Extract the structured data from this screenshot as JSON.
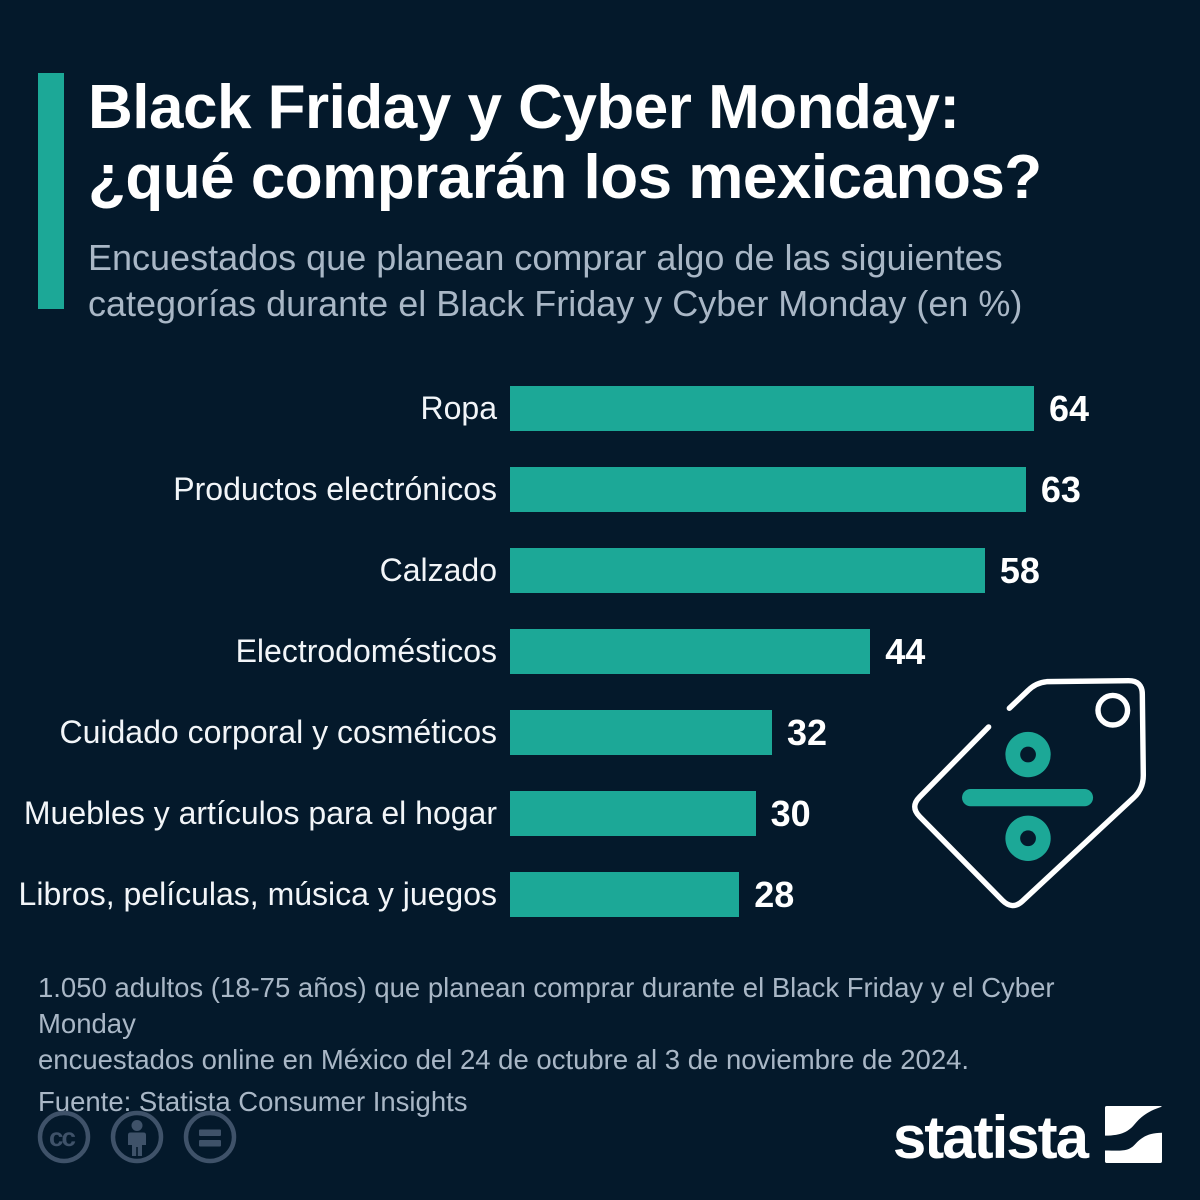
{
  "header": {
    "title_line1": "Black Friday y Cyber Monday:",
    "title_line2": "¿qué comprarán los mexicanos?",
    "subtitle_line1": "Encuestados que planean comprar algo de las siguientes",
    "subtitle_line2": "categorías durante el Black Friday y Cyber Monday (en %)"
  },
  "chart_data": {
    "type": "bar",
    "orientation": "horizontal",
    "title": "Black Friday y Cyber Monday: ¿qué comprarán los mexicanos?",
    "subtitle": "Encuestados que planean comprar algo de las siguientes categorías durante el Black Friday y Cyber Monday (en %)",
    "categories": [
      "Ropa",
      "Productos electrónicos",
      "Calzado",
      "Electrodomésticos",
      "Cuidado corporal y cosméticos",
      "Muebles y artículos para el hogar",
      "Libros, películas, música y juegos"
    ],
    "values": [
      64,
      63,
      58,
      44,
      32,
      30,
      28
    ],
    "unit": "%",
    "xlim": [
      0,
      64
    ],
    "grid": false,
    "value_labels": true,
    "legend": "none",
    "bar_color": "#1ca897"
  },
  "footer": {
    "note_line1": "1.050 adultos (18-75 años) que planean comprar durante el Black Friday y el Cyber Monday",
    "note_line2": "encuestados online en México del 24 de octubre al 3 de noviembre de 2024.",
    "source": "Fuente: Statista Consumer Insights"
  },
  "branding": {
    "logo_text": "statista",
    "logo_mark": "statista-s-curve-icon",
    "license_icons": [
      "creative-commons-icon",
      "attribution-person-icon",
      "no-derivatives-equals-icon"
    ]
  },
  "decoration": {
    "tag_icon": "price-tag-division-icon"
  },
  "colors": {
    "background": "#04192b",
    "accent_teal": "#1ca897",
    "title_text": "#ffffff",
    "subtitle_text": "#a9b7c6",
    "value_text": "#ffffff",
    "license_icon": "#3f5269"
  }
}
